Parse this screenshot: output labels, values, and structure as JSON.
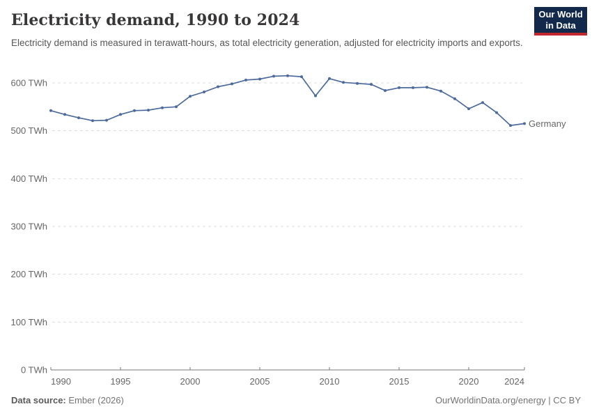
{
  "header": {
    "title": "Electricity demand, 1990 to 2024",
    "subtitle": "Electricity demand is measured in terawatt-hours, as total electricity generation, adjusted for electricity imports and exports."
  },
  "logo": {
    "line1": "Our World",
    "line2": "in Data",
    "bg_color": "#12294b",
    "bar_color": "#c1272d"
  },
  "chart_data": {
    "type": "line",
    "title": "Electricity demand, 1990 to 2024",
    "xlabel": "",
    "ylabel": "TWh",
    "x": [
      1990,
      1991,
      1992,
      1993,
      1994,
      1995,
      1996,
      1997,
      1998,
      1999,
      2000,
      2001,
      2002,
      2003,
      2004,
      2005,
      2006,
      2007,
      2008,
      2009,
      2010,
      2011,
      2012,
      2013,
      2014,
      2015,
      2016,
      2017,
      2018,
      2019,
      2020,
      2021,
      2022,
      2023,
      2024
    ],
    "series": [
      {
        "name": "Germany",
        "color": "#4C6A9C",
        "values": [
          542,
          534,
          527,
          521,
          522,
          534,
          542,
          543,
          548,
          550,
          572,
          581,
          592,
          598,
          606,
          608,
          614,
          615,
          613,
          573,
          609,
          601,
          599,
          597,
          584,
          590,
          590,
          591,
          583,
          567,
          546,
          559,
          538,
          511,
          515
        ]
      }
    ],
    "ylim": [
      0,
      600
    ],
    "ytick_step": 100,
    "ytick_suffix": " TWh",
    "xticks": [
      1990,
      1995,
      2000,
      2005,
      2010,
      2015,
      2020,
      2024
    ],
    "grid": "horizontal-dashed",
    "legend": "line-end-label"
  },
  "footer": {
    "source_label": "Data source:",
    "source_value": " Ember (2026)",
    "link": "OurWorldinData.org/energy | CC BY"
  },
  "colors": {
    "accent_line": "#4C6A9C",
    "grid": "#dddddd",
    "axis": "#7a7a7a",
    "tick_text": "#666666",
    "title_text": "#383636",
    "subtitle_text": "#555555",
    "footer_text": "#737373"
  }
}
